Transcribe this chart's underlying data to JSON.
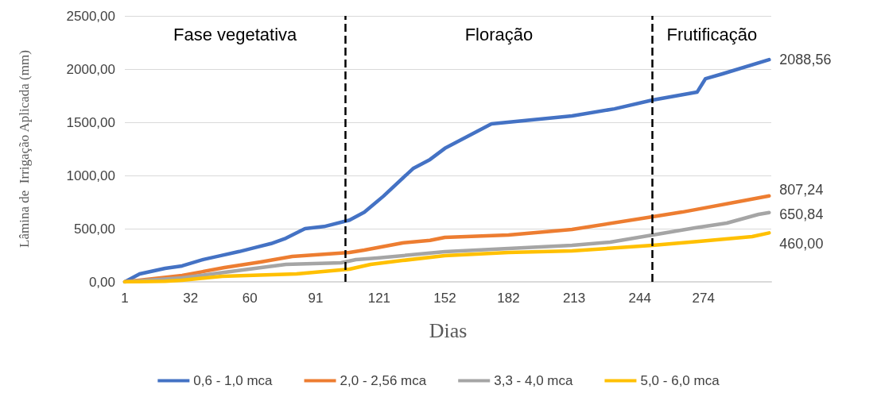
{
  "chart_data": {
    "type": "line",
    "xlabel": "Dias",
    "ylabel": "Lâmina de  Irrigação Aplicada (mm)",
    "xlim": [
      1,
      306
    ],
    "xticks": [
      1,
      32,
      60,
      91,
      121,
      152,
      182,
      213,
      244,
      274
    ],
    "ylim": [
      0,
      2500
    ],
    "yticks": [
      {
        "value": 0,
        "label": "0,00"
      },
      {
        "value": 500,
        "label": "500,00"
      },
      {
        "value": 1000,
        "label": "1000,00"
      },
      {
        "value": 1500,
        "label": "1500,00"
      },
      {
        "value": 2000,
        "label": "2000,00"
      },
      {
        "value": 2500,
        "label": "2500,00"
      }
    ],
    "grid": "y",
    "legend": "bottom",
    "marker": "none",
    "line_style": "solid",
    "series": [
      {
        "name": "0,6 - 1,0 mca",
        "color": "#4472c4",
        "x": [
          1,
          8,
          20,
          28,
          38,
          46,
          55,
          62,
          70,
          77,
          86,
          95,
          107,
          114,
          123,
          137,
          145,
          152,
          174,
          212,
          232,
          250,
          271,
          275,
          283,
          305
        ],
        "values": [
          0,
          75,
          127,
          150,
          210,
          245,
          285,
          320,
          360,
          410,
          500,
          520,
          580,
          655,
          805,
          1065,
          1150,
          1255,
          1485,
          1560,
          1626,
          1709,
          1783,
          1910,
          1955,
          2088.56
        ],
        "value_labels": [
          null,
          null,
          null,
          null,
          null,
          null,
          null,
          null,
          null,
          null,
          null,
          null,
          null,
          null,
          null,
          null,
          null,
          null,
          null,
          null,
          null,
          null,
          null,
          null,
          null,
          "2088,56"
        ]
      },
      {
        "name": "2,0 - 2,56 mca",
        "color": "#ed7d31",
        "x": [
          1,
          28,
          48,
          65,
          80,
          107,
          114,
          132,
          145,
          152,
          182,
          212,
          250,
          264,
          305
        ],
        "values": [
          0,
          60,
          134,
          187,
          239,
          276,
          298,
          366,
          390,
          418,
          440,
          492,
          612,
          656,
          807.24
        ],
        "value_labels": [
          null,
          null,
          null,
          null,
          null,
          null,
          null,
          null,
          null,
          null,
          null,
          null,
          null,
          null,
          "807,24"
        ]
      },
      {
        "name": "3,3 - 4,0 mca",
        "color": "#a5a5a5",
        "x": [
          1,
          28,
          48,
          77,
          103,
          110,
          120,
          152,
          182,
          212,
          230,
          250,
          270,
          285,
          300,
          305
        ],
        "values": [
          0,
          37,
          90,
          164,
          179,
          209,
          224,
          283,
          313,
          343,
          373,
          440,
          507,
          552,
          634,
          650.84
        ],
        "value_labels": [
          null,
          null,
          null,
          null,
          null,
          null,
          null,
          null,
          null,
          null,
          null,
          null,
          null,
          null,
          null,
          "650,84"
        ]
      },
      {
        "name": "5,0 - 6,0 mca",
        "color": "#ffc000",
        "x": [
          1,
          20,
          28,
          47,
          82,
          107,
          117,
          132,
          152,
          182,
          212,
          250,
          272,
          297,
          305
        ],
        "values": [
          0,
          5,
          15,
          52,
          75,
          119,
          164,
          201,
          246,
          276,
          291,
          343,
          380,
          425,
          460
        ],
        "value_labels": [
          null,
          null,
          null,
          null,
          null,
          null,
          null,
          null,
          null,
          null,
          null,
          null,
          null,
          null,
          "460,00"
        ]
      }
    ],
    "ref_lines": [
      {
        "axis": "x",
        "value": 105,
        "color": "#000000",
        "line_style": "dashed"
      },
      {
        "axis": "x",
        "value": 250,
        "color": "#000000",
        "line_style": "dashed"
      }
    ],
    "annotations": [
      "Fase vegetativa",
      "Floração",
      "Frutificação"
    ]
  }
}
